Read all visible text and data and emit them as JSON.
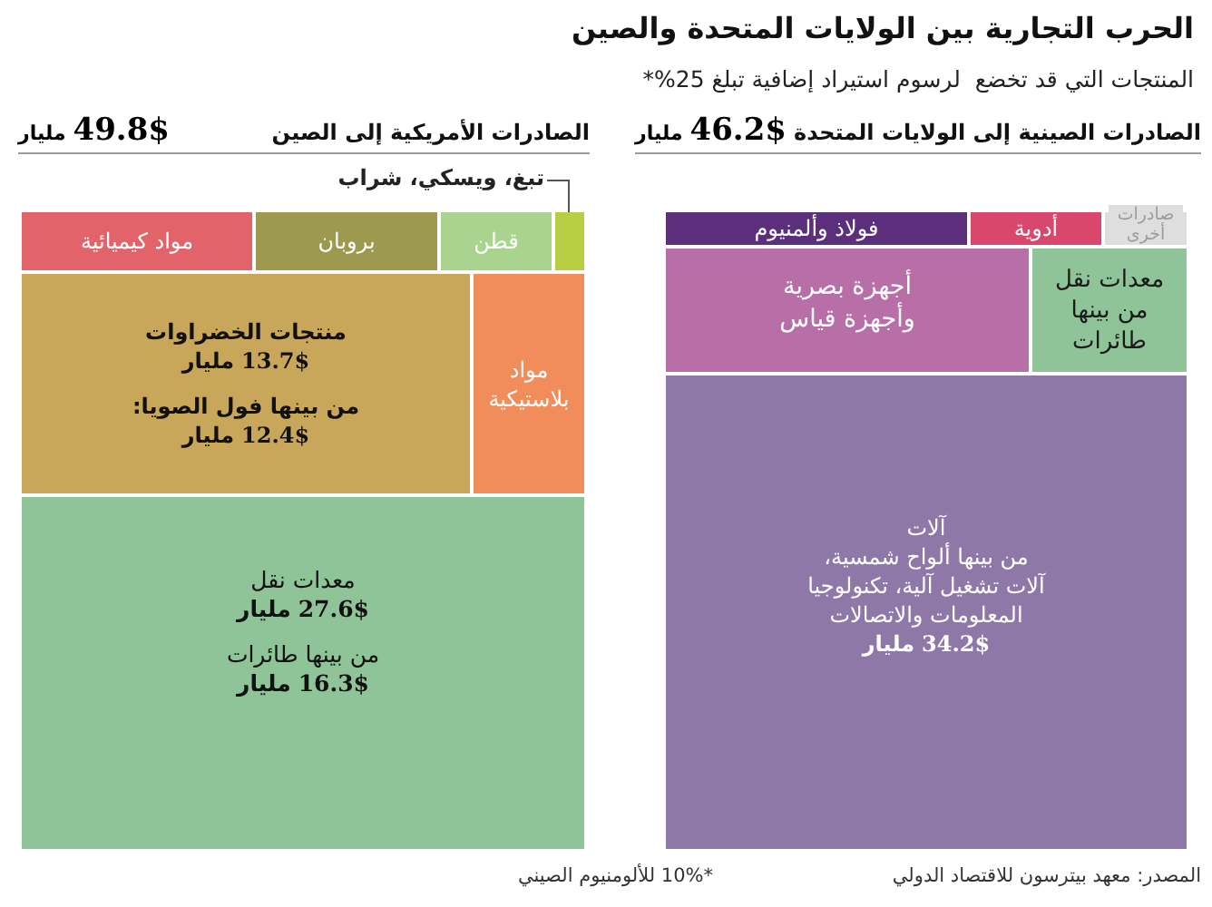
{
  "chart_data": [
    {
      "type": "other",
      "title": "الحرب التجارية بين الولايات المتحدة والصين",
      "subtitle": "المنتجات التي قد تخضع  لرسوم استيراد إضافية تبلغ 25%*",
      "annotations": [
        "المصدر: معهد بيترسون للاقتصاد الدولي",
        "*10% للألومنيوم الصيني"
      ]
    },
    {
      "type": "other",
      "title": "الصادرات الصينية إلى الولايات المتحدة",
      "annotations": [
        "46.2$ مليار"
      ],
      "categories": [
        "فولاذ وألمنيوم",
        "أدوية",
        "صادرات أخرى",
        "أجهزة بصرية وأجهزة قياس",
        "معدات نقل من بينها طائرات",
        "آلات\nمن بينها ألواح شمسية،\nآلات تشغيل آلية، تكنولوجيا\nالمعلومات والاتصالات"
      ],
      "values": [
        null,
        null,
        null,
        null,
        null,
        34.2
      ],
      "value_labels": [
        null,
        null,
        null,
        null,
        null,
        "34.2$ مليار"
      ],
      "colors": [
        "#5c2f7c",
        "#d9486c",
        "#dedede",
        "#b86fa7",
        "#8ec497",
        "#8e78a8"
      ]
    },
    {
      "type": "other",
      "title": "الصادرات الأمريكية إلى الصين",
      "annotations": [
        "49.8$ مليار",
        "من بينها فول الصويا:"
      ],
      "categories": [
        "مواد كيميائية",
        "بروبان",
        "قطن",
        "تبغ، ويسكي، شراب",
        "منتجات الخضراوات",
        null,
        "مواد بلاستيكية",
        "معدات نقل",
        "من بينها طائرات"
      ],
      "values": [
        null,
        null,
        null,
        null,
        13.7,
        12.4,
        null,
        27.6,
        16.3
      ],
      "value_labels": [
        null,
        null,
        null,
        null,
        "13.7$ مليار",
        "12.4$ مليار",
        null,
        "27.6$ مليار",
        "16.3$ مليار"
      ],
      "colors": [
        "#e2636a",
        "#9d9a50",
        "#a9d38e",
        "#b7cd42",
        "#c9a75a",
        "#c9a75a",
        "#f08d5b",
        "#8ec497",
        "#8ec497"
      ]
    }
  ]
}
